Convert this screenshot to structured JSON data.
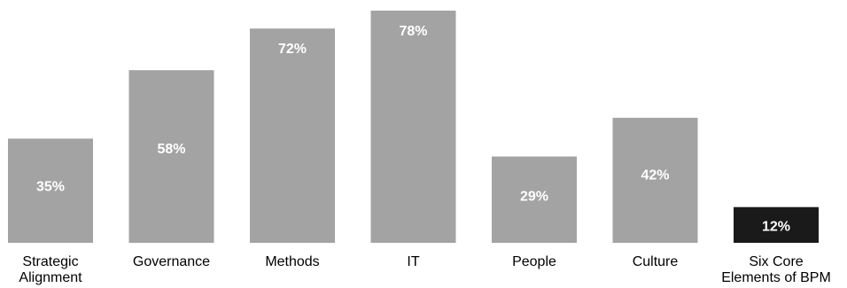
{
  "chart_data": {
    "type": "bar",
    "categories": [
      [
        "Strategic",
        "Alignment"
      ],
      [
        "Governance"
      ],
      [
        "Methods"
      ],
      [
        "IT"
      ],
      [
        "People"
      ],
      [
        "Culture"
      ],
      [
        "Six Core",
        "Elements of BPM"
      ]
    ],
    "values": [
      35,
      58,
      72,
      78,
      29,
      42,
      12
    ],
    "data_labels": [
      "35%",
      "58%",
      "72%",
      "78%",
      "29%",
      "42%",
      "12%"
    ],
    "ylim": [
      0,
      80
    ],
    "grid": false,
    "legend": "none",
    "colors": {
      "bar": "#a3a3a3",
      "highlight_bar": "#1a1a1a",
      "label_text": "#ffffff",
      "axis_text": "#000000"
    },
    "highlight_index": 6
  }
}
